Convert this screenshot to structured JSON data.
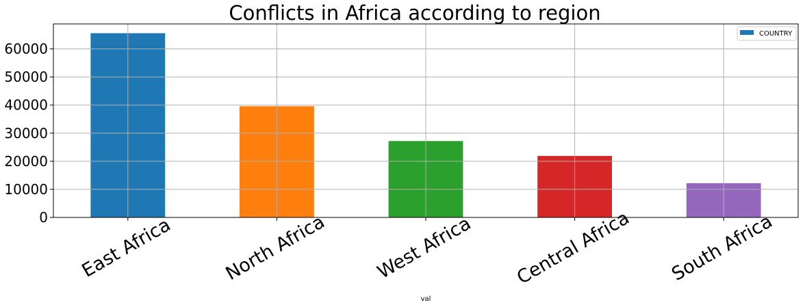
{
  "chart_data": {
    "type": "bar",
    "title": "Conflicts in Africa according to region",
    "xlabel": "val",
    "ylabel": "",
    "categories": [
      "East Africa",
      "North Africa",
      "West Africa",
      "Central Africa",
      "South Africa"
    ],
    "series": [
      {
        "name": "COUNTRY",
        "values": [
          65600,
          39600,
          27200,
          21900,
          12200
        ],
        "colors": [
          "#1f77b4",
          "#ff7f0e",
          "#2ca02c",
          "#d62728",
          "#9467bd"
        ]
      }
    ],
    "ylim": [
      0,
      68900
    ],
    "yticks": [
      0,
      10000,
      20000,
      30000,
      40000,
      50000,
      60000
    ],
    "grid": true,
    "legend_position": "top-right",
    "legend_color": "#1f77b4",
    "xtick_rotation": 30
  }
}
